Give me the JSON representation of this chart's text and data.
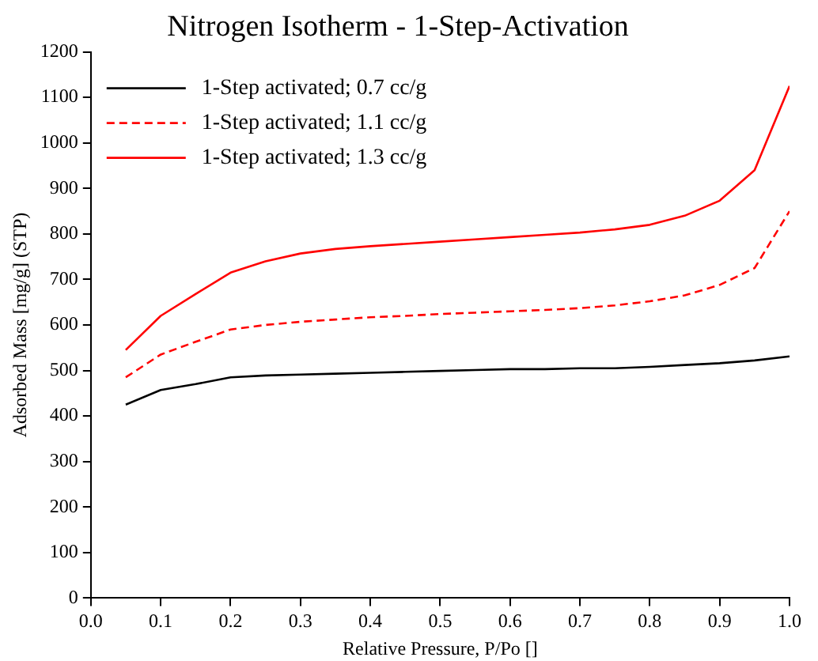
{
  "chart_data": {
    "type": "line",
    "title": "Nitrogen Isotherm - 1-Step-Activation",
    "xlabel": "Relative Pressure, P/Po []",
    "ylabel": "Adsorbed Mass [mg/g] (STP)",
    "x": [
      0.05,
      0.1,
      0.15,
      0.2,
      0.25,
      0.3,
      0.35,
      0.4,
      0.45,
      0.5,
      0.55,
      0.6,
      0.65,
      0.7,
      0.75,
      0.8,
      0.85,
      0.9,
      0.95,
      1.0
    ],
    "series": [
      {
        "name": "1-Step activated; 0.7 cc/g",
        "color": "#000000",
        "line_style": "solid",
        "values": [
          425,
          457,
          470,
          485,
          489,
          491,
          493,
          495,
          497,
          499,
          501,
          503,
          503,
          505,
          505,
          508,
          512,
          516,
          522,
          531
        ]
      },
      {
        "name": "1-Step activated; 1.1 cc/g",
        "color": "#ff0000",
        "line_style": "dashed",
        "values": [
          485,
          535,
          563,
          590,
          600,
          607,
          612,
          617,
          620,
          624,
          627,
          630,
          633,
          637,
          643,
          652,
          665,
          688,
          725,
          850
        ]
      },
      {
        "name": "1-Step activated; 1.3 cc/g",
        "color": "#ff0000",
        "line_style": "solid",
        "values": [
          545,
          620,
          668,
          715,
          740,
          757,
          767,
          773,
          778,
          783,
          788,
          793,
          798,
          803,
          810,
          820,
          840,
          873,
          940,
          1125
        ]
      }
    ],
    "xlim": [
      0,
      1
    ],
    "xticks": [
      {
        "value": 0,
        "label": "0.0"
      },
      0.1,
      0.2,
      0.3,
      0.4,
      0.5,
      0.6,
      0.7,
      0.8,
      0.9,
      {
        "value": 1,
        "label": "1.0"
      }
    ],
    "ylim": [
      0,
      1200
    ],
    "yticks": [
      0,
      100,
      200,
      300,
      400,
      500,
      600,
      700,
      800,
      900,
      1000,
      1100,
      1200
    ],
    "grid": false,
    "legend": "top left",
    "marker": "none"
  }
}
